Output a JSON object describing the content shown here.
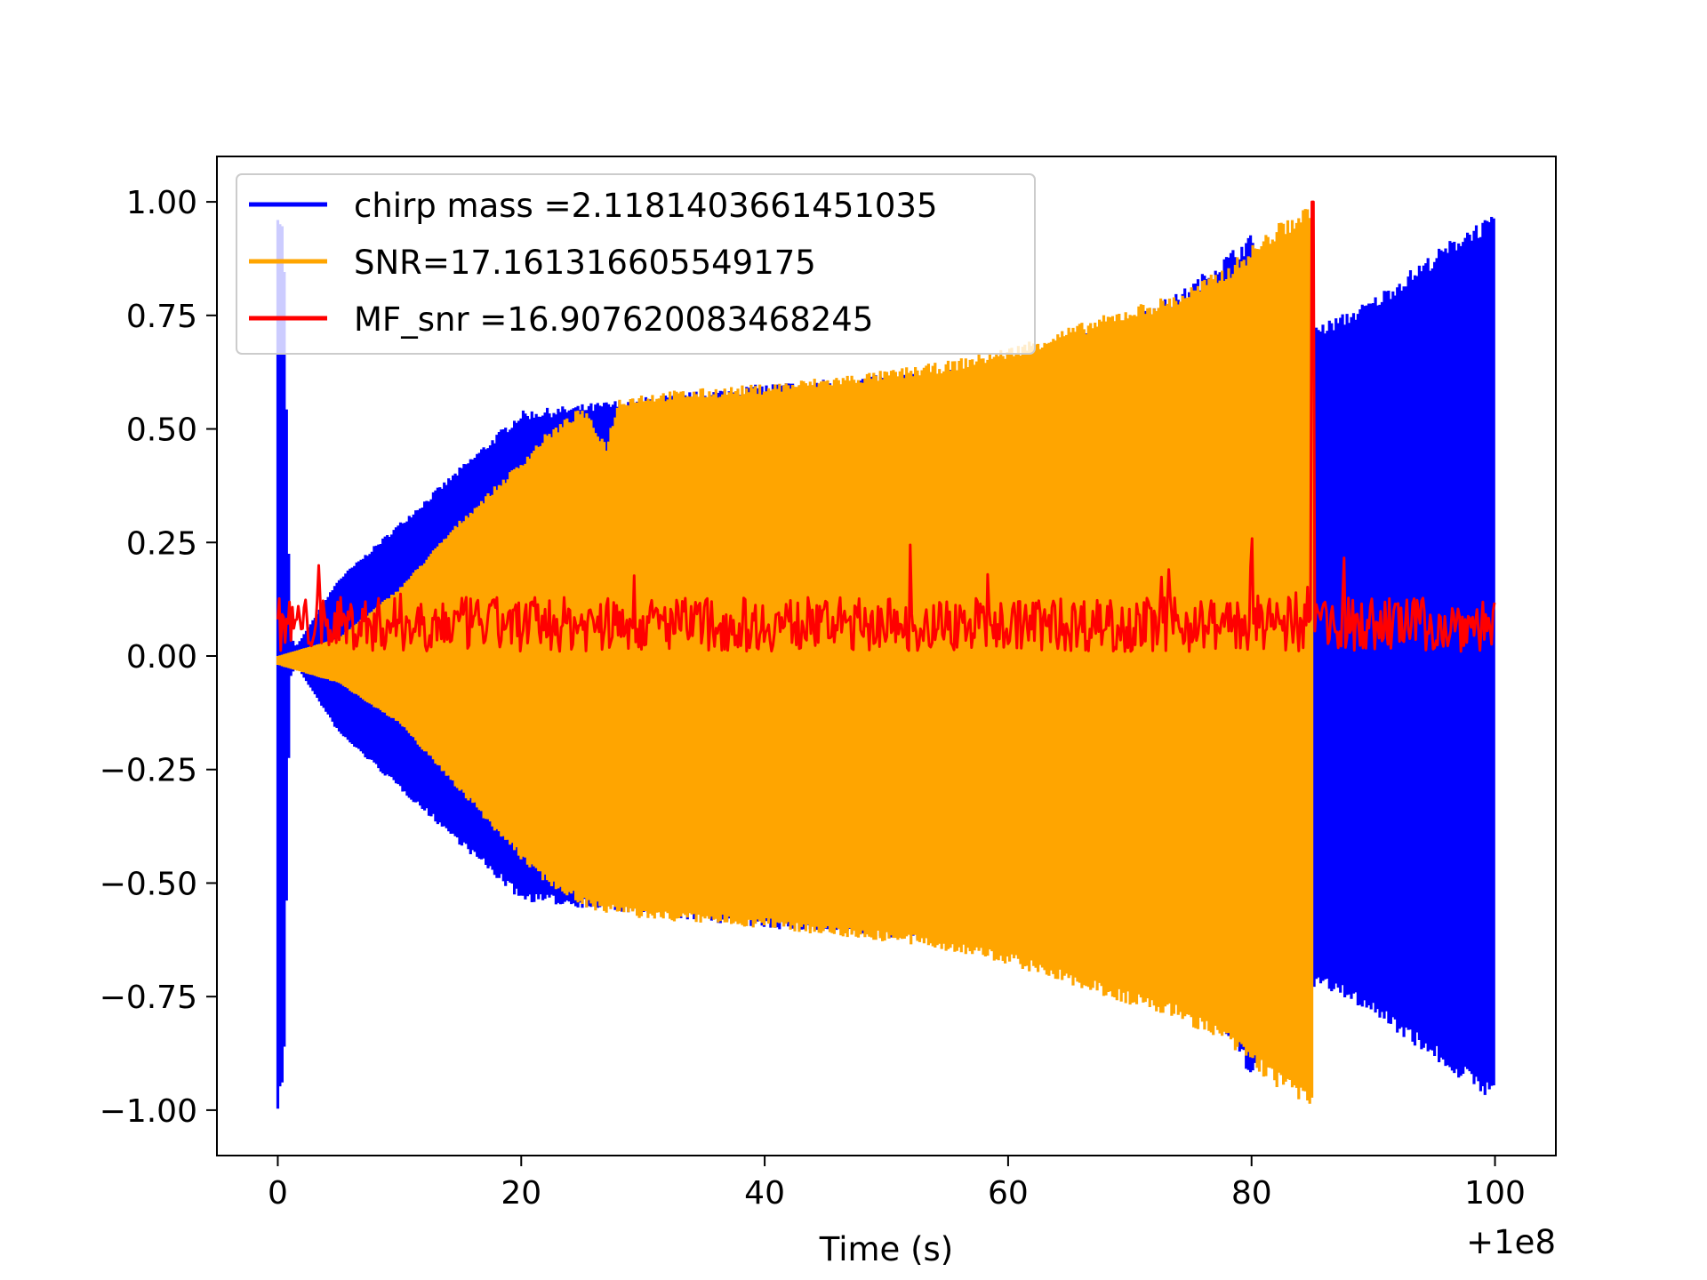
{
  "chart_data": {
    "type": "line",
    "title": "",
    "xlabel": "Time (s)",
    "ylabel": "",
    "x_offset_label": "+1e8",
    "xlim": [
      -5,
      105
    ],
    "ylim": [
      -1.1,
      1.1
    ],
    "x_ticks": [
      0,
      20,
      40,
      60,
      80,
      100
    ],
    "x_tick_labels": [
      "0",
      "20",
      "40",
      "60",
      "80",
      "100"
    ],
    "y_ticks": [
      -1.0,
      -0.75,
      -0.5,
      -0.25,
      0.0,
      0.25,
      0.5,
      0.75,
      1.0
    ],
    "y_tick_labels": [
      "−1.00",
      "−0.75",
      "−0.50",
      "−0.25",
      "0.00",
      "0.25",
      "0.50",
      "0.75",
      "1.00"
    ],
    "grid": false,
    "legend_position": "top-left",
    "series": [
      {
        "name": "chirp mass =2.1181403661451035",
        "color": "#0000ff",
        "envelope_x": [
          0,
          0.5,
          1,
          1.5,
          5,
          20,
          40,
          60,
          74,
          80,
          85.5,
          88,
          90,
          93,
          96,
          98,
          100
        ],
        "envelope_upper": [
          1.0,
          0.94,
          0.05,
          0.02,
          0.17,
          0.54,
          0.6,
          0.64,
          0.8,
          0.93,
          0.73,
          0.76,
          0.79,
          0.85,
          0.91,
          0.95,
          0.97
        ],
        "envelope_lower": [
          -1.0,
          -0.94,
          -0.05,
          -0.02,
          -0.17,
          -0.54,
          -0.6,
          -0.64,
          -0.66,
          -0.93,
          -0.73,
          -0.76,
          -0.79,
          -0.85,
          -0.91,
          -0.95,
          -0.98
        ]
      },
      {
        "name": "SNR=17.161316605549175",
        "color": "#ffa500",
        "envelope_x": [
          0,
          5,
          10,
          15,
          20,
          22,
          25,
          27,
          28,
          30,
          40,
          50,
          55,
          60,
          70,
          74,
          78,
          82,
          85
        ],
        "envelope_upper": [
          0.0,
          0.04,
          0.15,
          0.3,
          0.43,
          0.49,
          0.55,
          0.47,
          0.57,
          0.58,
          0.6,
          0.63,
          0.65,
          0.68,
          0.77,
          0.8,
          0.86,
          0.95,
          1.0
        ],
        "envelope_lower": [
          -0.02,
          -0.06,
          -0.15,
          -0.3,
          -0.45,
          -0.5,
          -0.55,
          -0.57,
          -0.57,
          -0.58,
          -0.6,
          -0.63,
          -0.65,
          -0.68,
          -0.77,
          -0.8,
          -0.86,
          -0.95,
          -1.0
        ]
      },
      {
        "name": "MF_snr =16.907620083468245",
        "color": "#ff0000",
        "baseline": 0.07,
        "noise_max": 0.24,
        "peak_x": 85,
        "peak_y": 1.0
      }
    ]
  }
}
